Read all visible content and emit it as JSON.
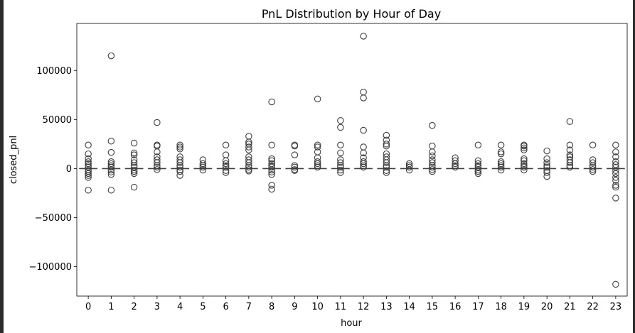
{
  "chart_data": {
    "type": "boxplot",
    "title": "PnL Distribution by Hour of Day",
    "xlabel": "hour",
    "ylabel": "closed_pnl",
    "ylim": [
      -130000,
      148000
    ],
    "y_ticks": [
      -100000,
      -50000,
      0,
      50000,
      100000
    ],
    "y_tick_labels": [
      "−100000",
      "−50000",
      "0",
      "50000",
      "100000"
    ],
    "categories": [
      "0",
      "1",
      "2",
      "3",
      "4",
      "5",
      "6",
      "7",
      "8",
      "9",
      "10",
      "11",
      "12",
      "13",
      "14",
      "15",
      "16",
      "17",
      "18",
      "19",
      "20",
      "21",
      "22",
      "23"
    ],
    "median": 0,
    "outliers": [
      [
        -22000,
        -9000,
        -7000,
        -5000,
        -3000,
        -1500,
        1500,
        3000,
        5000,
        7000,
        10000,
        15000,
        24000
      ],
      [
        -22000,
        -6000,
        -3500,
        -1500,
        1500,
        3000,
        5000,
        7000,
        16500,
        28000,
        115000
      ],
      [
        -19000,
        -5000,
        -3000,
        -1500,
        1500,
        3000,
        6000,
        9000,
        14000,
        16000,
        26000
      ],
      [
        -1000,
        1500,
        3000,
        6000,
        9000,
        12000,
        17000,
        23000,
        24000,
        47000
      ],
      [
        -7000,
        -3000,
        -1500,
        1500,
        3000,
        6000,
        9000,
        12000,
        20000,
        22000,
        24000
      ],
      [
        -1500,
        1500,
        3000,
        5000,
        9000
      ],
      [
        -4000,
        -2000,
        1500,
        3000,
        5000,
        8000,
        14000,
        24000
      ],
      [
        -2500,
        -1000,
        1500,
        3000,
        6000,
        9000,
        12000,
        19000,
        22000,
        25000,
        27000,
        33000
      ],
      [
        -21000,
        -17000,
        -6000,
        -3500,
        -1500,
        1500,
        3000,
        5000,
        8000,
        10000,
        24000,
        68000
      ],
      [
        -2000,
        -1000,
        1500,
        3000,
        14000,
        23000,
        24000
      ],
      [
        1500,
        3000,
        5000,
        7000,
        11000,
        17000,
        22000,
        24000,
        71000
      ],
      [
        -4000,
        -1500,
        1500,
        3000,
        6000,
        9000,
        16000,
        24000,
        42000,
        49000
      ],
      [
        1500,
        3000,
        5000,
        7000,
        11000,
        16000,
        22000,
        39000,
        72000,
        78000,
        135000
      ],
      [
        -4000,
        -2000,
        1500,
        3000,
        6000,
        9000,
        12000,
        15000,
        23000,
        25000,
        29000,
        34000
      ],
      [
        -1500,
        1500,
        3000,
        5000
      ],
      [
        -3000,
        -1000,
        1500,
        3000,
        6000,
        9000,
        13000,
        17000,
        23000,
        44000
      ],
      [
        1500,
        3000,
        5000,
        8000,
        11000
      ],
      [
        -5000,
        -3000,
        -1500,
        1500,
        3000,
        5000,
        8000,
        24000
      ],
      [
        -1500,
        1500,
        3000,
        5000,
        7000,
        15000,
        17000,
        24000
      ],
      [
        -1500,
        1500,
        3000,
        5000,
        8000,
        10000,
        19000,
        21000,
        23000,
        24000
      ],
      [
        -8000,
        -4000,
        -2000,
        1500,
        3000,
        6000,
        10000,
        18000
      ],
      [
        1500,
        3000,
        6000,
        9000,
        12000,
        14000,
        19000,
        24000,
        48000
      ],
      [
        -3000,
        -1000,
        1500,
        3000,
        6000,
        9000,
        24000
      ],
      [
        -118000,
        -30000,
        -19000,
        -17000,
        -12000,
        -9000,
        -5000,
        -2000,
        1500,
        4000,
        7000,
        12000,
        17000,
        24000
      ]
    ]
  }
}
